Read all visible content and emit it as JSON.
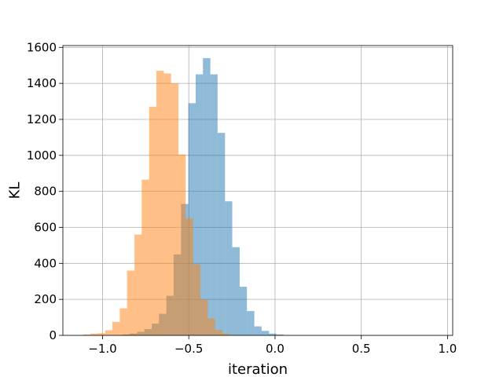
{
  "chart_data": {
    "type": "histogram",
    "xlabel": "iteration",
    "ylabel": "KL",
    "xlim": [
      -1.23,
      1.03
    ],
    "ylim": [
      0,
      1610
    ],
    "grid": true,
    "x_ticks": [
      -1.0,
      -0.5,
      0.0,
      0.5,
      1.0
    ],
    "x_tick_labels": [
      "−1.0",
      "−0.5",
      "0.0",
      "0.5",
      "1.0"
    ],
    "y_ticks": [
      0,
      200,
      400,
      600,
      800,
      1000,
      1200,
      1400,
      1600
    ],
    "y_tick_labels": [
      "0",
      "200",
      "400",
      "600",
      "800",
      "1000",
      "1200",
      "1400",
      "1600"
    ],
    "series": [
      {
        "color": "#1f77b4",
        "alpha": 0.5,
        "bins": [
          {
            "x0": -0.885,
            "x1": -0.843,
            "count": 5
          },
          {
            "x0": -0.843,
            "x1": -0.8,
            "count": 10
          },
          {
            "x0": -0.8,
            "x1": -0.758,
            "count": 20
          },
          {
            "x0": -0.758,
            "x1": -0.715,
            "count": 35
          },
          {
            "x0": -0.715,
            "x1": -0.673,
            "count": 65
          },
          {
            "x0": -0.673,
            "x1": -0.63,
            "count": 120
          },
          {
            "x0": -0.63,
            "x1": -0.588,
            "count": 220
          },
          {
            "x0": -0.588,
            "x1": -0.545,
            "count": 450
          },
          {
            "x0": -0.545,
            "x1": -0.503,
            "count": 730
          },
          {
            "x0": -0.503,
            "x1": -0.46,
            "count": 1290
          },
          {
            "x0": -0.46,
            "x1": -0.418,
            "count": 1450
          },
          {
            "x0": -0.418,
            "x1": -0.375,
            "count": 1540
          },
          {
            "x0": -0.375,
            "x1": -0.333,
            "count": 1450
          },
          {
            "x0": -0.333,
            "x1": -0.29,
            "count": 1125
          },
          {
            "x0": -0.29,
            "x1": -0.248,
            "count": 745
          },
          {
            "x0": -0.248,
            "x1": -0.205,
            "count": 490
          },
          {
            "x0": -0.205,
            "x1": -0.163,
            "count": 270
          },
          {
            "x0": -0.163,
            "x1": -0.12,
            "count": 135
          },
          {
            "x0": -0.12,
            "x1": -0.078,
            "count": 50
          },
          {
            "x0": -0.078,
            "x1": -0.035,
            "count": 25
          },
          {
            "x0": -0.035,
            "x1": 0.008,
            "count": 10
          },
          {
            "x0": 0.008,
            "x1": 0.05,
            "count": 5
          }
        ]
      },
      {
        "color": "#ff7f0e",
        "alpha": 0.5,
        "bins": [
          {
            "x0": -1.112,
            "x1": -1.07,
            "count": 5
          },
          {
            "x0": -1.07,
            "x1": -1.027,
            "count": 10
          },
          {
            "x0": -1.027,
            "x1": -0.985,
            "count": 12
          },
          {
            "x0": -0.985,
            "x1": -0.943,
            "count": 28
          },
          {
            "x0": -0.943,
            "x1": -0.9,
            "count": 75
          },
          {
            "x0": -0.9,
            "x1": -0.858,
            "count": 150
          },
          {
            "x0": -0.858,
            "x1": -0.815,
            "count": 360
          },
          {
            "x0": -0.815,
            "x1": -0.773,
            "count": 560
          },
          {
            "x0": -0.773,
            "x1": -0.73,
            "count": 865
          },
          {
            "x0": -0.73,
            "x1": -0.688,
            "count": 1270
          },
          {
            "x0": -0.688,
            "x1": -0.645,
            "count": 1470
          },
          {
            "x0": -0.645,
            "x1": -0.603,
            "count": 1455
          },
          {
            "x0": -0.603,
            "x1": -0.56,
            "count": 1400
          },
          {
            "x0": -0.56,
            "x1": -0.518,
            "count": 1005
          },
          {
            "x0": -0.518,
            "x1": -0.475,
            "count": 650
          },
          {
            "x0": -0.475,
            "x1": -0.433,
            "count": 395
          },
          {
            "x0": -0.433,
            "x1": -0.39,
            "count": 200
          },
          {
            "x0": -0.39,
            "x1": -0.348,
            "count": 95
          },
          {
            "x0": -0.348,
            "x1": -0.305,
            "count": 30
          },
          {
            "x0": -0.305,
            "x1": -0.263,
            "count": 10
          }
        ]
      }
    ]
  }
}
